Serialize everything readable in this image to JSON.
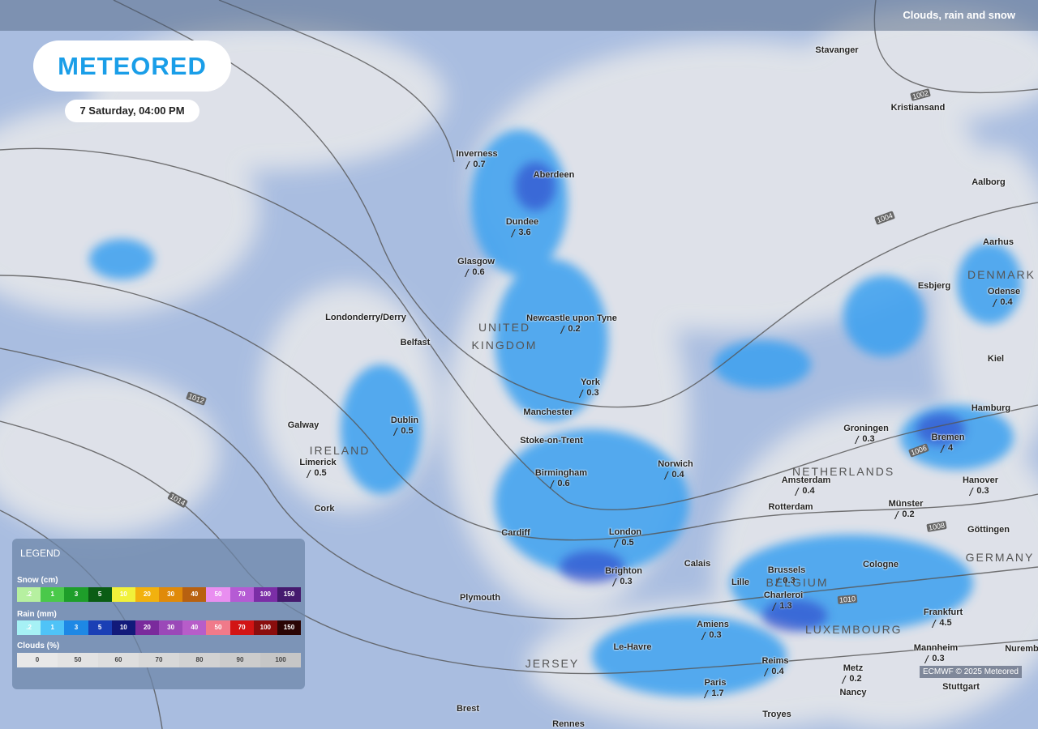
{
  "header": {
    "layer": "Clouds, rain and snow",
    "logo": "METEORED",
    "date": "7 Saturday, 04:00 PM"
  },
  "cities": [
    {
      "name": "Stavanger"
    },
    {
      "name": "Kristiansand"
    },
    {
      "name": "Inverness",
      "value": 0.7
    },
    {
      "name": "Aberdeen"
    },
    {
      "name": "Dundee",
      "value": 3.6
    },
    {
      "name": "Glasgow",
      "value": 0.6
    },
    {
      "name": "Aalborg"
    },
    {
      "name": "Aarhus"
    },
    {
      "name": "Esbjerg"
    },
    {
      "name": "Odense",
      "value": 0.4
    },
    {
      "name": "Londonderry/Derry"
    },
    {
      "name": "Belfast"
    },
    {
      "name": "Newcastle upon Tyne",
      "value": 0.2
    },
    {
      "name": "Kiel"
    },
    {
      "name": "York",
      "value": 0.3
    },
    {
      "name": "Hamburg"
    },
    {
      "name": "Galway"
    },
    {
      "name": "Dublin",
      "value": 0.5
    },
    {
      "name": "Manchester"
    },
    {
      "name": "Groningen",
      "value": 0.3
    },
    {
      "name": "Bremen",
      "value": 4
    },
    {
      "name": "Stoke-on-Trent"
    },
    {
      "name": "Limerick",
      "value": 0.5
    },
    {
      "name": "Birmingham",
      "value": 0.6
    },
    {
      "name": "Norwich",
      "value": 0.4
    },
    {
      "name": "Amsterdam",
      "value": 0.4
    },
    {
      "name": "Hanover",
      "value": 0.3
    },
    {
      "name": "Cork"
    },
    {
      "name": "Rotterdam"
    },
    {
      "name": "Münster",
      "value": 0.2
    },
    {
      "name": "Cardiff"
    },
    {
      "name": "London",
      "value": 0.5
    },
    {
      "name": "Göttingen"
    },
    {
      "name": "Calais"
    },
    {
      "name": "Cologne"
    },
    {
      "name": "Brighton",
      "value": 0.3
    },
    {
      "name": "Brussels",
      "value": 0.3
    },
    {
      "name": "Lille"
    },
    {
      "name": "Plymouth"
    },
    {
      "name": "Charleroi",
      "value": 1.3
    },
    {
      "name": "Frankfurt",
      "value": 4.5
    },
    {
      "name": "Amiens",
      "value": 0.3
    },
    {
      "name": "Le-Havre"
    },
    {
      "name": "Mannheim",
      "value": 0.3
    },
    {
      "name": "Nuremb"
    },
    {
      "name": "Reims",
      "value": 0.4
    },
    {
      "name": "Metz",
      "value": 0.2
    },
    {
      "name": "Paris",
      "value": 1.7
    },
    {
      "name": "Nancy"
    },
    {
      "name": "Stuttgart"
    },
    {
      "name": "Brest"
    },
    {
      "name": "Troyes"
    },
    {
      "name": "Rennes"
    }
  ],
  "countries": [
    "UNITED KINGDOM",
    "IRELAND",
    "NETHERLANDS",
    "BELGIUM",
    "LUXEMBOURG",
    "GERMANY",
    "DENMARK",
    "JERSEY"
  ],
  "isobars": [
    "1002",
    "1004",
    "1006",
    "1008",
    "1010",
    "1012",
    "1014"
  ],
  "legend": {
    "title": "LEGEND",
    "snow": {
      "label": "Snow (cm)",
      "scale": [
        ".2",
        "1",
        "3",
        "5",
        "10",
        "20",
        "30",
        "40",
        "50",
        "70",
        "100",
        "150"
      ]
    },
    "rain": {
      "label": "Rain (mm)",
      "scale": [
        ".2",
        "1",
        "3",
        "5",
        "10",
        "20",
        "30",
        "40",
        "50",
        "70",
        "100",
        "150"
      ]
    },
    "clouds": {
      "label": "Clouds (%)",
      "scale": [
        "0",
        "50",
        "60",
        "70",
        "80",
        "90",
        "100"
      ]
    }
  },
  "credit": "ECMWF © 2025 Meteored"
}
